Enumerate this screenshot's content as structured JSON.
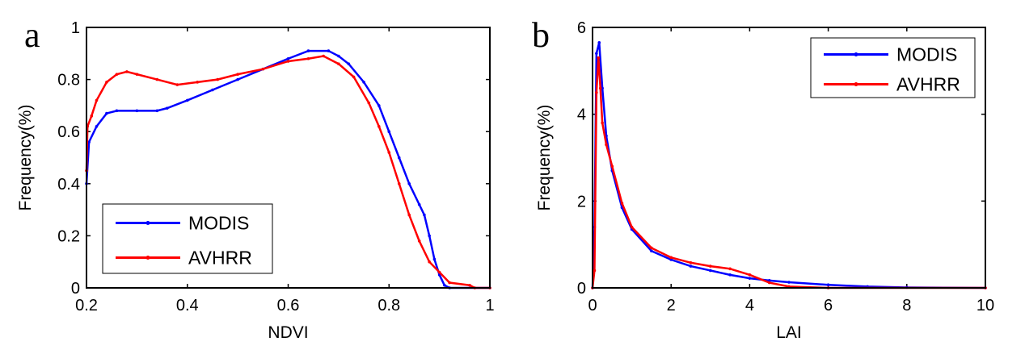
{
  "chart_data": [
    {
      "type": "line",
      "panel_label": "a",
      "xlabel": "NDVI",
      "ylabel": "Frequency(%)",
      "xlim": [
        0.2,
        1
      ],
      "ylim": [
        0,
        1
      ],
      "xticks": [
        "0.2",
        "0.4",
        "0.6",
        "0.8",
        "1"
      ],
      "yticks": [
        "0",
        "0.2",
        "0.4",
        "0.6",
        "0.8",
        "1"
      ],
      "legend_position": "bottom-left",
      "series": [
        {
          "name": "MODIS",
          "color": "#0000ff",
          "x": [
            0.2,
            0.205,
            0.22,
            0.24,
            0.26,
            0.3,
            0.34,
            0.36,
            0.4,
            0.45,
            0.5,
            0.55,
            0.6,
            0.64,
            0.68,
            0.7,
            0.72,
            0.75,
            0.78,
            0.8,
            0.82,
            0.84,
            0.86,
            0.87,
            0.88,
            0.89,
            0.9,
            0.91,
            0.92,
            1.0
          ],
          "y": [
            0.4,
            0.56,
            0.62,
            0.67,
            0.68,
            0.68,
            0.68,
            0.69,
            0.72,
            0.76,
            0.8,
            0.84,
            0.88,
            0.91,
            0.91,
            0.89,
            0.86,
            0.79,
            0.7,
            0.6,
            0.5,
            0.4,
            0.32,
            0.28,
            0.2,
            0.11,
            0.05,
            0.01,
            0,
            0
          ]
        },
        {
          "name": "AVHRR",
          "color": "#ff0000",
          "x": [
            0.2,
            0.202,
            0.21,
            0.22,
            0.24,
            0.26,
            0.28,
            0.3,
            0.34,
            0.38,
            0.42,
            0.46,
            0.5,
            0.55,
            0.6,
            0.64,
            0.67,
            0.7,
            0.73,
            0.76,
            0.78,
            0.8,
            0.82,
            0.84,
            0.86,
            0.88,
            0.9,
            0.92,
            0.96,
            0.97,
            1.0
          ],
          "y": [
            0.45,
            0.62,
            0.66,
            0.72,
            0.79,
            0.82,
            0.83,
            0.82,
            0.8,
            0.78,
            0.79,
            0.8,
            0.82,
            0.84,
            0.87,
            0.88,
            0.89,
            0.86,
            0.81,
            0.71,
            0.62,
            0.52,
            0.4,
            0.28,
            0.18,
            0.1,
            0.06,
            0.02,
            0.01,
            0,
            0
          ]
        }
      ]
    },
    {
      "type": "line",
      "panel_label": "b",
      "xlabel": "LAI",
      "ylabel": "Frequency(%)",
      "xlim": [
        0,
        10
      ],
      "ylim": [
        0,
        6
      ],
      "xticks": [
        "0",
        "2",
        "4",
        "6",
        "8",
        "10"
      ],
      "yticks": [
        "0",
        "2",
        "4",
        "6"
      ],
      "legend_position": "top-right",
      "series": [
        {
          "name": "MODIS",
          "color": "#0000ff",
          "x": [
            0,
            0.05,
            0.1,
            0.17,
            0.25,
            0.35,
            0.5,
            0.75,
            1,
            1.5,
            2,
            2.5,
            3,
            3.5,
            4,
            4.5,
            5,
            6,
            7,
            8,
            10
          ],
          "y": [
            0,
            1.4,
            5.4,
            5.65,
            4.6,
            3.5,
            2.7,
            1.85,
            1.35,
            0.85,
            0.65,
            0.5,
            0.4,
            0.3,
            0.22,
            0.17,
            0.13,
            0.07,
            0.03,
            0.01,
            0
          ]
        },
        {
          "name": "AVHRR",
          "color": "#ff0000",
          "x": [
            0,
            0.05,
            0.1,
            0.15,
            0.2,
            0.25,
            0.35,
            0.5,
            0.75,
            1,
            1.5,
            2,
            2.5,
            3,
            3.5,
            4,
            4.5,
            5,
            6,
            10
          ],
          "y": [
            0,
            0.4,
            4.5,
            5.3,
            4.6,
            3.8,
            3.3,
            2.8,
            1.95,
            1.4,
            0.92,
            0.7,
            0.58,
            0.5,
            0.44,
            0.3,
            0.12,
            0.03,
            0,
            0
          ]
        }
      ]
    }
  ]
}
